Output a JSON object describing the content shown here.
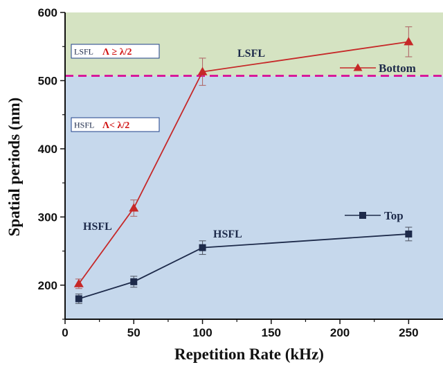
{
  "chart_data": {
    "type": "line",
    "xlabel": "Repetition Rate (kHz)",
    "ylabel": "Spatial periods (nm)",
    "xlim": [
      0,
      275
    ],
    "ylim": [
      150,
      600
    ],
    "xticks": [
      "0",
      "50",
      "100",
      "150",
      "200",
      "250"
    ],
    "yticks": [
      "200",
      "300",
      "400",
      "500",
      "600"
    ],
    "threshold": 507,
    "regions": {
      "upper_color": "#d5e3c2",
      "lower_color": "#c6d8ec",
      "threshold_color": "#d81a9a"
    },
    "series": [
      {
        "name": "Bottom",
        "marker": "triangle",
        "color": "#c62828",
        "points": [
          {
            "x": 10,
            "y": 202,
            "err": 7
          },
          {
            "x": 50,
            "y": 313,
            "err": 12
          },
          {
            "x": 100,
            "y": 513,
            "err": 20
          },
          {
            "x": 250,
            "y": 557,
            "err": 22
          }
        ]
      },
      {
        "name": "Top",
        "marker": "square",
        "color": "#1d2a4a",
        "points": [
          {
            "x": 10,
            "y": 180,
            "err": 7
          },
          {
            "x": 50,
            "y": 205,
            "err": 8
          },
          {
            "x": 100,
            "y": 255,
            "err": 10
          },
          {
            "x": 250,
            "y": 275,
            "err": 10
          }
        ]
      }
    ],
    "annotations": {
      "lsfl_box": {
        "small": "LSFL",
        "formula": "Λ ≥ λ/2"
      },
      "hsfl_box": {
        "small": "HSFL",
        "formula": "Λ< λ/2"
      },
      "lsfl_label": "LSFL",
      "hsfl_label_left": "HSFL",
      "hsfl_label_right": "HSFL"
    },
    "legend": "right"
  }
}
